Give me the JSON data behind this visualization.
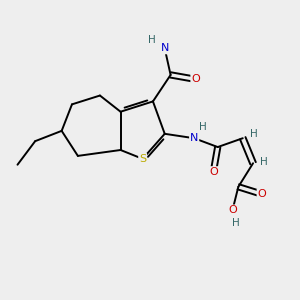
{
  "bg_color": "#eeeeee",
  "atom_colors": {
    "C": "#000000",
    "N": "#0000cc",
    "O": "#cc0000",
    "S": "#bbaa00",
    "H": "#336666"
  },
  "bond_color": "#000000",
  "bond_width": 1.4,
  "figsize": [
    3.0,
    3.0
  ],
  "dpi": 100,
  "xlim": [
    0,
    10
  ],
  "ylim": [
    0,
    10
  ]
}
